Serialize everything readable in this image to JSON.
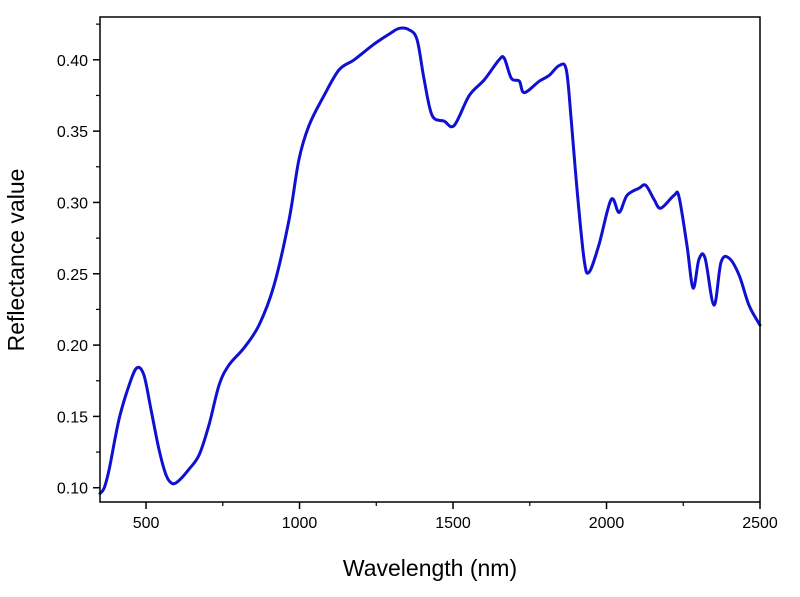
{
  "chart_data": {
    "type": "line",
    "title": "",
    "xlabel": "Wavelength (nm)",
    "ylabel": "Reflectance value",
    "xlim": [
      350,
      2500
    ],
    "ylim": [
      0.09,
      0.43
    ],
    "xticks": [
      500,
      1000,
      1500,
      2000,
      2500
    ],
    "xtick_labels": [
      "500",
      "1000",
      "1500",
      "2000",
      "2500"
    ],
    "yticks": [
      0.1,
      0.15,
      0.2,
      0.25,
      0.3,
      0.35,
      0.4
    ],
    "ytick_labels": [
      "0.10",
      "0.15",
      "0.20",
      "0.25",
      "0.30",
      "0.35",
      "0.40"
    ],
    "grid": false,
    "legend": "none",
    "series": [
      {
        "name": "Reflectance",
        "color": "#1010d0",
        "x": [
          350,
          364,
          380,
          412,
          445,
          470,
          493,
          516,
          542,
          565,
          585,
          607,
          640,
          673,
          705,
          738,
          770,
          819,
          868,
          917,
          966,
          998,
          1031,
          1080,
          1129,
          1178,
          1243,
          1292,
          1324,
          1357,
          1383,
          1406,
          1432,
          1471,
          1504,
          1553,
          1602,
          1650,
          1667,
          1690,
          1716,
          1732,
          1781,
          1813,
          1846,
          1869,
          1885,
          1904,
          1927,
          1943,
          1975,
          2015,
          2041,
          2067,
          2106,
          2128,
          2155,
          2177,
          2220,
          2236,
          2262,
          2282,
          2301,
          2321,
          2350,
          2373,
          2399,
          2432,
          2464,
          2500
        ],
        "y": [
          0.096,
          0.1,
          0.113,
          0.148,
          0.172,
          0.184,
          0.179,
          0.155,
          0.127,
          0.109,
          0.103,
          0.105,
          0.113,
          0.123,
          0.144,
          0.172,
          0.186,
          0.198,
          0.214,
          0.242,
          0.288,
          0.33,
          0.354,
          0.375,
          0.393,
          0.4,
          0.411,
          0.418,
          0.422,
          0.421,
          0.414,
          0.386,
          0.361,
          0.357,
          0.354,
          0.375,
          0.386,
          0.4,
          0.401,
          0.387,
          0.385,
          0.377,
          0.385,
          0.389,
          0.396,
          0.393,
          0.358,
          0.309,
          0.26,
          0.251,
          0.27,
          0.302,
          0.293,
          0.305,
          0.31,
          0.312,
          0.302,
          0.296,
          0.305,
          0.304,
          0.27,
          0.24,
          0.26,
          0.261,
          0.228,
          0.258,
          0.261,
          0.249,
          0.228,
          0.214
        ]
      }
    ]
  }
}
